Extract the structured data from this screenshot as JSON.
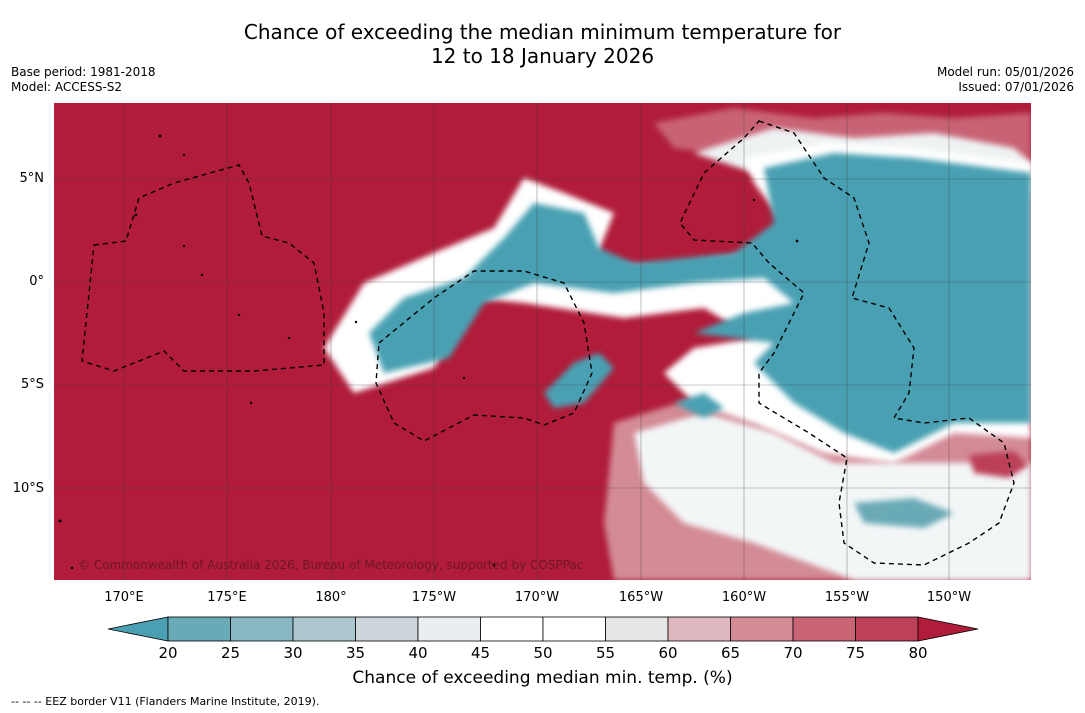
{
  "title": {
    "line1": "Chance of exceeding the median minimum temperature for",
    "line2": "12 to 18 January 2026"
  },
  "meta_left": {
    "base_period": "Base period: 1981-2018",
    "model": "Model: ACCESS-S2"
  },
  "meta_right": {
    "model_run": "Model run: 05/01/2026",
    "issued": "Issued: 07/01/2026"
  },
  "map": {
    "copyright": "© Commonwealth of Australia 2026, Bureau of Meteorology, supported by COSPPac",
    "lat_ticks": [
      "5°N",
      "0°",
      "5°S",
      "10°S"
    ],
    "lon_ticks": [
      "170°E",
      "175°E",
      "180°",
      "175°W",
      "170°W",
      "165°W",
      "160°W",
      "155°W",
      "150°W"
    ]
  },
  "colorbar": {
    "colors": [
      "#4aa0b2",
      "#6aaab6",
      "#89b8c4",
      "#abc6cc",
      "#ccd6da",
      "#e9eff1",
      "#ffffff",
      "#ffffff",
      "#e6e6e6",
      "#dfb8bf",
      "#d38b96",
      "#c86474",
      "#bc4158",
      "#b01c3a"
    ],
    "ticks": [
      "20",
      "25",
      "30",
      "35",
      "40",
      "45",
      "50",
      "55",
      "60",
      "65",
      "70",
      "75",
      "80"
    ],
    "label": "Chance of exceeding median min. temp. (%)"
  },
  "legend_note": "--  --  -- EEZ border V11 (Flanders Marine Institute, 2019)."
}
